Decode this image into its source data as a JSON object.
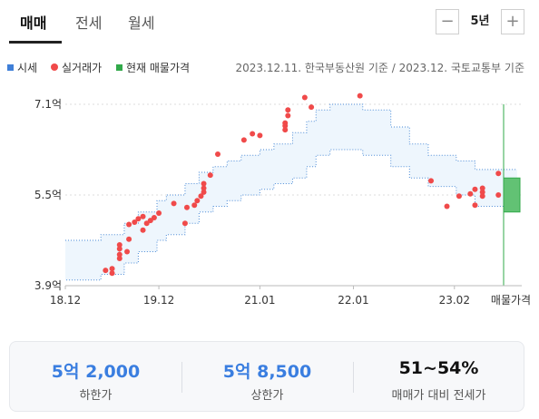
{
  "tabs": [
    {
      "label": "매매",
      "active": true
    },
    {
      "label": "전세",
      "active": false
    },
    {
      "label": "월세",
      "active": false
    }
  ],
  "period": {
    "minus_icon": "minus-icon",
    "value": "5년",
    "plus_icon": "plus-icon"
  },
  "legend": [
    {
      "label": "시세",
      "marker": "square",
      "color": "#3f7fd8"
    },
    {
      "label": "실거래가",
      "marker": "dot",
      "color": "#f04a4a"
    },
    {
      "label": "현재 매물가격",
      "marker": "square",
      "color": "#31a94a"
    }
  ],
  "source": "2023.12.11. 한국부동산원 기준 / 2023.12. 국토교통부 기준",
  "chart_data": {
    "type": "scatter",
    "title": "",
    "xlabel": "",
    "ylabel": "",
    "x_ticks": [
      "18.12",
      "19.12",
      "21.01",
      "22.01",
      "23.02"
    ],
    "x_tick_values": [
      2018.92,
      2019.92,
      2021.0,
      2022.0,
      2023.08
    ],
    "x_extra_label": "매물가격",
    "xlim": [
      2018.92,
      2023.8
    ],
    "y_ticks": [
      "7.1억",
      "5.5억",
      "3.9억"
    ],
    "y_tick_values": [
      7.1,
      5.5,
      3.9
    ],
    "ylim": [
      3.9,
      7.1
    ],
    "grid": "horizontal-dashed",
    "colors": {
      "band_fill": "#eef6fd",
      "band_line": "#4a8ad6",
      "trade_dot": "#f04a4a",
      "listing": "#31a94a",
      "listing_fill": "#62c274"
    },
    "series": [
      {
        "name": "시세",
        "type": "band",
        "x": [
          2018.92,
          2019.3,
          2019.3,
          2019.55,
          2019.55,
          2019.7,
          2019.7,
          2019.9,
          2019.9,
          2020.0,
          2020.0,
          2020.2,
          2020.2,
          2020.35,
          2020.35,
          2020.5,
          2020.5,
          2020.65,
          2020.65,
          2020.8,
          2020.8,
          2021.0,
          2021.0,
          2021.15,
          2021.15,
          2021.35,
          2021.35,
          2021.5,
          2021.5,
          2021.6,
          2021.6,
          2021.75,
          2021.75,
          2022.1,
          2022.1,
          2022.4,
          2022.4,
          2022.6,
          2022.6,
          2022.8,
          2022.8,
          2023.1,
          2023.1,
          2023.3,
          2023.3,
          2023.75
        ],
        "high": [
          4.7,
          4.7,
          4.8,
          4.8,
          5.0,
          5.0,
          5.2,
          5.2,
          5.4,
          5.4,
          5.5,
          5.5,
          5.7,
          5.7,
          5.9,
          5.9,
          6.0,
          6.0,
          6.1,
          6.1,
          6.2,
          6.2,
          6.3,
          6.3,
          6.4,
          6.4,
          6.6,
          6.6,
          6.8,
          6.8,
          7.0,
          7.0,
          7.1,
          7.1,
          7.0,
          7.0,
          6.7,
          6.7,
          6.4,
          6.4,
          6.2,
          6.2,
          6.1,
          6.1,
          5.95,
          5.95
        ],
        "low": [
          4.0,
          4.0,
          4.1,
          4.1,
          4.3,
          4.3,
          4.5,
          4.5,
          4.7,
          4.7,
          4.8,
          4.8,
          5.0,
          5.0,
          5.2,
          5.2,
          5.3,
          5.3,
          5.4,
          5.4,
          5.5,
          5.5,
          5.6,
          5.6,
          5.7,
          5.7,
          5.8,
          5.8,
          6.0,
          6.0,
          6.2,
          6.2,
          6.3,
          6.3,
          6.2,
          6.2,
          6.0,
          6.0,
          5.8,
          5.8,
          5.65,
          5.65,
          5.5,
          5.5,
          5.3,
          5.3
        ]
      },
      {
        "name": "실거래가",
        "type": "scatter",
        "points": [
          [
            2019.35,
            4.17
          ],
          [
            2019.42,
            4.12
          ],
          [
            2019.42,
            4.2
          ],
          [
            2019.5,
            4.38
          ],
          [
            2019.5,
            4.45
          ],
          [
            2019.5,
            4.55
          ],
          [
            2019.5,
            4.62
          ],
          [
            2019.58,
            4.5
          ],
          [
            2019.6,
            4.72
          ],
          [
            2019.6,
            4.98
          ],
          [
            2019.66,
            5.02
          ],
          [
            2019.7,
            5.08
          ],
          [
            2019.75,
            4.88
          ],
          [
            2019.75,
            5.12
          ],
          [
            2019.79,
            5.0
          ],
          [
            2019.83,
            5.05
          ],
          [
            2019.87,
            5.1
          ],
          [
            2019.92,
            5.18
          ],
          [
            2020.08,
            5.35
          ],
          [
            2020.2,
            5.0
          ],
          [
            2020.22,
            5.28
          ],
          [
            2020.3,
            5.32
          ],
          [
            2020.33,
            5.4
          ],
          [
            2020.37,
            5.48
          ],
          [
            2020.4,
            5.55
          ],
          [
            2020.4,
            5.62
          ],
          [
            2020.4,
            5.7
          ],
          [
            2020.47,
            5.85
          ],
          [
            2020.55,
            6.22
          ],
          [
            2020.83,
            6.47
          ],
          [
            2020.92,
            6.58
          ],
          [
            2021.0,
            6.55
          ],
          [
            2021.27,
            6.65
          ],
          [
            2021.27,
            6.72
          ],
          [
            2021.27,
            6.77
          ],
          [
            2021.3,
            6.9
          ],
          [
            2021.3,
            7.0
          ],
          [
            2021.48,
            7.22
          ],
          [
            2021.55,
            7.05
          ],
          [
            2022.07,
            7.25
          ],
          [
            2022.83,
            5.75
          ],
          [
            2023.0,
            5.3
          ],
          [
            2023.13,
            5.48
          ],
          [
            2023.25,
            5.52
          ],
          [
            2023.3,
            5.32
          ],
          [
            2023.3,
            5.6
          ],
          [
            2023.38,
            5.48
          ],
          [
            2023.38,
            5.55
          ],
          [
            2023.38,
            5.62
          ],
          [
            2023.55,
            5.5
          ],
          [
            2023.55,
            5.88
          ]
        ]
      },
      {
        "name": "현재 매물가격",
        "type": "range",
        "x": 2023.8,
        "low": 5.2,
        "high": 5.8
      }
    ]
  },
  "summary": [
    {
      "value": "5억 2,000",
      "label": "하한가",
      "color": "#3a7ee0"
    },
    {
      "value": "5억 8,500",
      "label": "상한가",
      "color": "#3a7ee0"
    },
    {
      "value": "51~54%",
      "label": "매매가 대비 전세가",
      "color": "#111111"
    }
  ]
}
